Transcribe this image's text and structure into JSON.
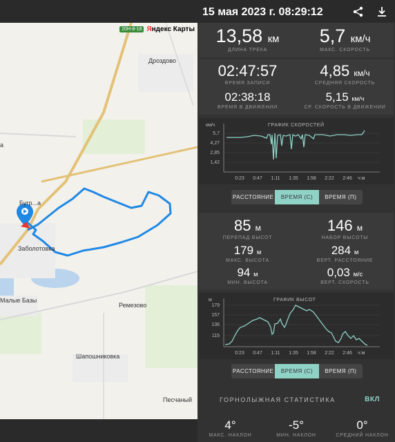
{
  "header": {
    "title": "15 мая 2023 г. 08:29:12"
  },
  "map": {
    "badge": "20Н-8-18",
    "brand_y": "Я",
    "brand_rest": "ндекс Карты",
    "places": [
      "Дроздово",
      "Бугр...а",
      "Заболотовка",
      "Малые Базы",
      "Ремезово",
      "Шапошниковка",
      "Песчаный",
      "а"
    ]
  },
  "summary": {
    "distance": {
      "value": "13,58",
      "unit": "км",
      "label": "ДЛИНА ТРЕКА"
    },
    "max_speed": {
      "value": "5,7",
      "unit": "км/ч",
      "label": "МАКС. СКОРОСТЬ"
    }
  },
  "time": {
    "record_time": {
      "value": "02:47:57",
      "label": "ВРЕМЯ ЗАПИСИ"
    },
    "avg_speed": {
      "value": "4,85",
      "unit": "км/ч",
      "label": "СРЕДНЯЯ СКОРОСТЬ"
    },
    "moving_time": {
      "value": "02:38:18",
      "label": "ВРЕМЯ В ДВИЖЕНИИ"
    },
    "avg_moving_speed": {
      "value": "5,15",
      "unit": "км/ч",
      "label": "СР. СКОРОСТЬ В ДВИЖЕНИИ"
    }
  },
  "speed_chart": {
    "title": "ГРАФИК СКОРОСТЕЙ",
    "y_unit": "км/ч",
    "x_unit": "ч:м",
    "y_ticks": [
      "5,7",
      "4,27",
      "2,85",
      "1,42"
    ],
    "x_ticks": [
      "0:23",
      "0:47",
      "1:11",
      "1:35",
      "1:58",
      "2:22",
      "2:46"
    ]
  },
  "speed_tabs": {
    "distance": "РАССТОЯНИЕ",
    "time_c": "ВРЕМЯ (С)",
    "time_p": "ВРЕМЯ (П)"
  },
  "elevation": {
    "drop": {
      "value": "85",
      "unit": "м",
      "label": "ПЕРЕПАД ВЫСОТ"
    },
    "gain": {
      "value": "146",
      "unit": "м",
      "label": "НАБОР ВЫСОТЫ"
    },
    "max_alt": {
      "value": "179",
      "unit": "м",
      "label": "МАКС. ВЫСОТА"
    },
    "vert_dist": {
      "value": "284",
      "unit": "м",
      "label": "ВЕРТ. РАССТОЯНИЕ"
    },
    "min_alt": {
      "value": "94",
      "unit": "м",
      "label": "МИН. ВЫСОТА"
    },
    "vert_speed": {
      "value": "0,03",
      "unit": "м/с",
      "label": "ВЕРТ. СКОРОСТЬ"
    }
  },
  "alt_chart": {
    "title": "ГРАФИК ВЫСОТ",
    "y_unit": "м",
    "x_unit": "ч:м",
    "y_ticks": [
      "179",
      "157",
      "136",
      "115"
    ],
    "x_ticks": [
      "0:23",
      "0:47",
      "1:11",
      "1:35",
      "1:58",
      "2:22",
      "2:46"
    ]
  },
  "alt_tabs": {
    "distance": "РАССТОЯНИЕ",
    "time_c": "ВРЕМЯ (С)",
    "time_p": "ВРЕМЯ (П)"
  },
  "ski": {
    "title": "ГОРНОЛЫЖНАЯ СТАТИСТИКА",
    "toggle": "ВКЛ",
    "max_slope": {
      "value": "4°",
      "label": "МАКС. НАКЛОН"
    },
    "min_slope": {
      "value": "-5°",
      "label": "МИН. НАКЛОН"
    },
    "avg_slope": {
      "value": "0°",
      "label": "СРЕДНИЙ НАКЛОН"
    }
  },
  "colors": {
    "accent": "#8fd3c7",
    "track": "#1e88e5",
    "panel": "#3a3a3a"
  }
}
